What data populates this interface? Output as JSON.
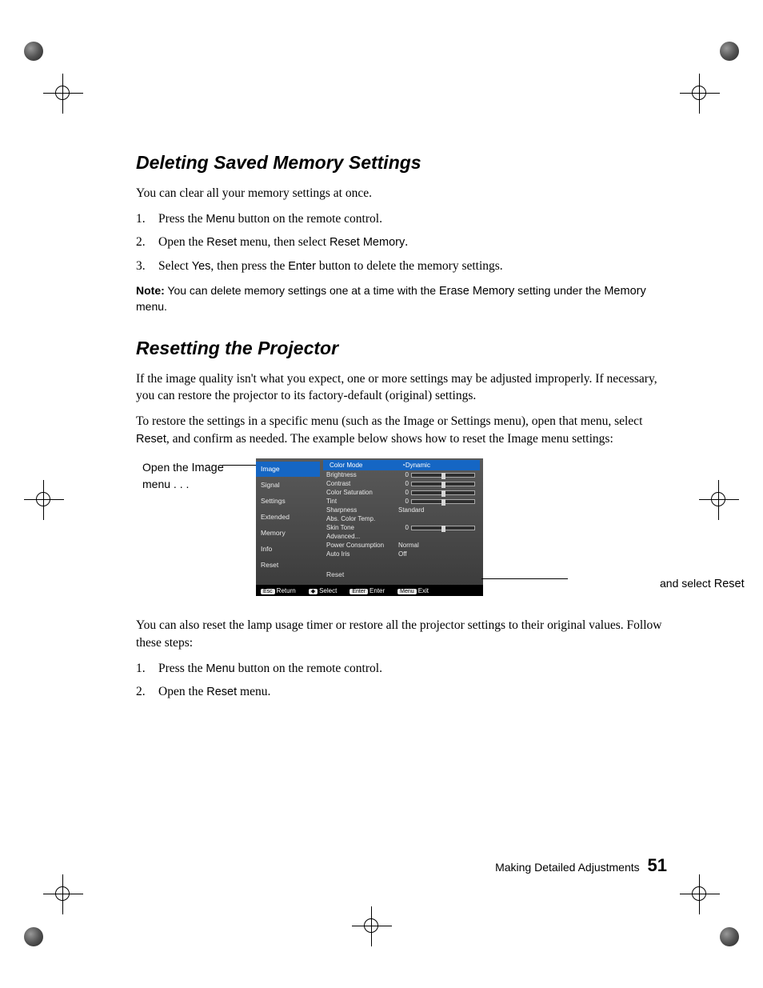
{
  "section1": {
    "heading": "Deleting Saved Memory Settings",
    "intro": "You can clear all your memory settings at once.",
    "steps": [
      {
        "pre": "Press the ",
        "sans": "Menu",
        "post": " button on the remote control."
      },
      {
        "pre": "Open the ",
        "sans": "Reset",
        "mid": " menu, then select ",
        "sans2": "Reset Memory",
        "post": "."
      },
      {
        "pre": "Select ",
        "sans": "Yes",
        "mid": ", then press the ",
        "sans2": "Enter",
        "post": " button to delete the memory settings."
      }
    ],
    "note_label": "Note:",
    "note_a": " You can delete memory settings one at a time with the ",
    "note_sans1": "Erase Memory",
    "note_b": " setting under the ",
    "note_sans2": "Memory",
    "note_c": " menu."
  },
  "section2": {
    "heading": "Resetting the Projector",
    "para1": "If the image quality isn't what you expect, one or more settings may be adjusted improperly. If necessary, you can restore the projector to its factory-default (original) settings.",
    "para2_a": "To restore the settings in a specific menu (such as the Image or Settings menu), open that menu, select ",
    "para2_sans": "Reset",
    "para2_b": ", and confirm as needed. The example below shows how to reset the Image menu settings:",
    "callout_left_a": "Open the ",
    "callout_left_sans": "Image",
    "callout_left_b": " menu . . .",
    "callout_right_a": "and select ",
    "callout_right_sans": "Reset",
    "para3": "You can also reset the lamp usage timer or restore all the projector settings to their original values. Follow these steps:",
    "steps2": [
      {
        "pre": "Press the ",
        "sans": "Menu",
        "post": " button on the remote control."
      },
      {
        "pre": "Open the ",
        "sans": "Reset",
        "post": " menu."
      }
    ]
  },
  "osd": {
    "side": [
      "Image",
      "Signal",
      "Settings",
      "Extended",
      "Memory",
      "Info",
      "Reset"
    ],
    "side_selected": 0,
    "rows": [
      {
        "label": "Color Mode",
        "value_text": "Dynamic",
        "hl": true,
        "icon": true
      },
      {
        "label": "Brightness",
        "num": "0",
        "slider": true
      },
      {
        "label": "Contrast",
        "num": "0",
        "slider": true
      },
      {
        "label": "Color Saturation",
        "num": "0",
        "slider": true
      },
      {
        "label": "Tint",
        "num": "0",
        "slider": true
      },
      {
        "label": "Sharpness",
        "value_text": "Standard"
      },
      {
        "label": "Abs. Color Temp."
      },
      {
        "label": "Skin Tone",
        "num": "0",
        "slider": true
      },
      {
        "label": "Advanced..."
      },
      {
        "label": "Power Consumption",
        "value_text": "Normal"
      },
      {
        "label": "Auto Iris",
        "value_text": "Off"
      }
    ],
    "reset_label": "Reset",
    "footer": [
      {
        "key": "Esc",
        "txt": "Return"
      },
      {
        "key": "◆",
        "txt": "Select"
      },
      {
        "key": "Enter",
        "txt": "Enter"
      },
      {
        "key": "Menu",
        "txt": "Exit"
      }
    ]
  },
  "footer": {
    "chapter": "Making Detailed Adjustments",
    "page": "51"
  }
}
